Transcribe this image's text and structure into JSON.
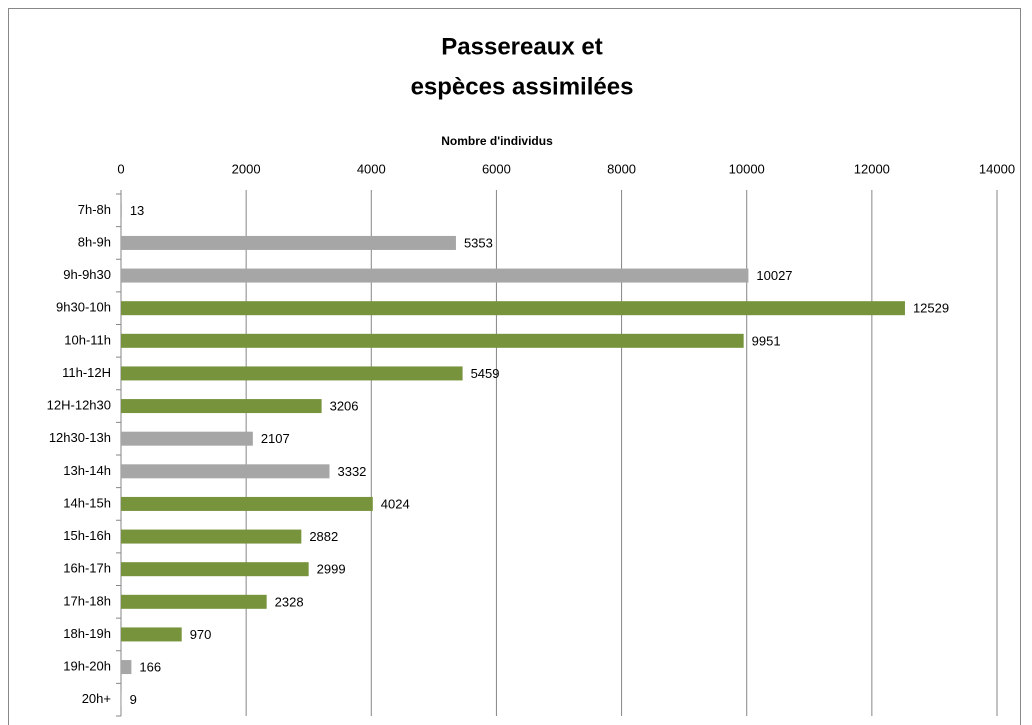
{
  "chart_data": {
    "type": "bar",
    "orientation": "horizontal",
    "title": [
      "Passereaux et",
      "espèces assimilées"
    ],
    "x_label": "Nombre d'individus",
    "categories": [
      "7h-8h",
      "8h-9h",
      "9h-9h30",
      "9h30-10h",
      "10h-11h",
      "11h-12H",
      "12H-12h30",
      "12h30-13h",
      "13h-14h",
      "14h-15h",
      "15h-16h",
      "16h-17h",
      "17h-18h",
      "18h-19h",
      "19h-20h",
      "20h+"
    ],
    "values": [
      13,
      5353,
      10027,
      12529,
      9951,
      5459,
      3206,
      2107,
      3332,
      4024,
      2882,
      2999,
      2328,
      970,
      166,
      9
    ],
    "colors": [
      "#a6a6a6",
      "#a6a6a6",
      "#a6a6a6",
      "#77933c",
      "#77933c",
      "#77933c",
      "#77933c",
      "#a6a6a6",
      "#a6a6a6",
      "#77933c",
      "#77933c",
      "#77933c",
      "#77933c",
      "#77933c",
      "#a6a6a6",
      "#a6a6a6"
    ],
    "xlim": [
      0,
      14000
    ],
    "xticks": [
      0,
      2000,
      4000,
      6000,
      8000,
      10000,
      12000,
      14000
    ],
    "grid": true,
    "x_axis_position": "top"
  }
}
